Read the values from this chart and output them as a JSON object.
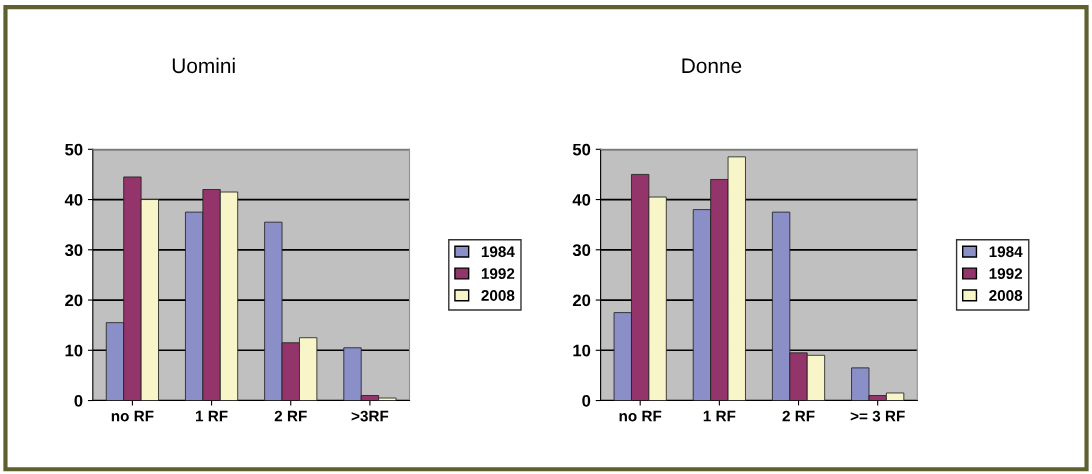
{
  "chart_data": [
    {
      "type": "bar",
      "title": "Uomini",
      "categories": [
        "no RF",
        "1 RF",
        "2 RF",
        ">3RF"
      ],
      "ylim": [
        0,
        50
      ],
      "yticks": [
        0,
        10,
        20,
        30,
        40,
        50
      ],
      "grid": "y",
      "legend": "right",
      "series": [
        {
          "name": "1984",
          "color": "#8b8fc8",
          "values": [
            15.5,
            37.5,
            35.5,
            10.5
          ]
        },
        {
          "name": "1992",
          "color": "#93356a",
          "values": [
            44.5,
            42,
            11.5,
            1
          ]
        },
        {
          "name": "2008",
          "color": "#f8f6c8",
          "values": [
            40,
            41.5,
            12.5,
            0.5
          ]
        }
      ]
    },
    {
      "type": "bar",
      "title": "Donne",
      "categories": [
        "no RF",
        "1 RF",
        "2 RF",
        ">= 3 RF"
      ],
      "ylim": [
        0,
        50
      ],
      "yticks": [
        0,
        10,
        20,
        30,
        40,
        50
      ],
      "grid": "y",
      "legend": "right",
      "series": [
        {
          "name": "1984",
          "color": "#8b8fc8",
          "values": [
            17.5,
            38,
            37.5,
            6.5
          ]
        },
        {
          "name": "1992",
          "color": "#93356a",
          "values": [
            45,
            44,
            9.5,
            1
          ]
        },
        {
          "name": "2008",
          "color": "#f8f6c8",
          "values": [
            40.5,
            48.5,
            9,
            1.5
          ]
        }
      ]
    }
  ]
}
